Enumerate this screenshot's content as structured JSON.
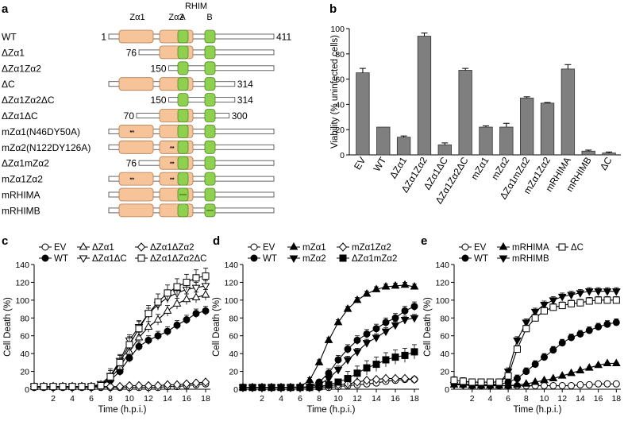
{
  "panel_a": {
    "label": "a",
    "header": {
      "za1": "Zα1",
      "za2": "Zα2",
      "rhim": "RHIM",
      "a": "A",
      "b": "B"
    },
    "constructs": [
      {
        "name": "WT",
        "start_label": "1",
        "end_label": "411",
        "start": 1,
        "end": 411,
        "domains": [
          "za1",
          "za2",
          "A",
          "B"
        ],
        "mut": []
      },
      {
        "name": "ΔZα1",
        "start_label": "76",
        "end_label": "",
        "start": 76,
        "end": 411,
        "domains": [
          "za2",
          "A",
          "B"
        ],
        "mut": []
      },
      {
        "name": "ΔZα1Zα2",
        "start_label": "150",
        "end_label": "",
        "start": 150,
        "end": 411,
        "domains": [
          "A",
          "B"
        ],
        "mut": []
      },
      {
        "name": "ΔC",
        "start_label": "",
        "end_label": "314",
        "start": 1,
        "end": 314,
        "domains": [
          "za1",
          "za2",
          "A",
          "B"
        ],
        "mut": []
      },
      {
        "name": "ΔZα1Zα2ΔC",
        "start_label": "150",
        "end_label": "314",
        "start": 150,
        "end": 314,
        "domains": [
          "A",
          "B"
        ],
        "mut": []
      },
      {
        "name": "ΔZα1ΔC",
        "start_label": "70",
        "end_label": "300",
        "start": 70,
        "end": 300,
        "domains": [
          "za2",
          "A",
          "B"
        ],
        "mut": []
      },
      {
        "name": "mZα1(N46DY50A)",
        "start_label": "",
        "end_label": "",
        "start": 1,
        "end": 411,
        "domains": [
          "za1",
          "za2",
          "A",
          "B"
        ],
        "mut": [
          "za1"
        ]
      },
      {
        "name": "mZα2(N122DY126A)",
        "start_label": "",
        "end_label": "",
        "start": 1,
        "end": 411,
        "domains": [
          "za1",
          "za2",
          "A",
          "B"
        ],
        "mut": [
          "za2"
        ]
      },
      {
        "name": "ΔZα1mZα2",
        "start_label": "76",
        "end_label": "",
        "start": 76,
        "end": 411,
        "domains": [
          "za2",
          "A",
          "B"
        ],
        "mut": [
          "za2"
        ]
      },
      {
        "name": "mZα1Zα2",
        "start_label": "",
        "end_label": "",
        "start": 1,
        "end": 411,
        "domains": [
          "za1",
          "za2",
          "A",
          "B"
        ],
        "mut": [
          "za1",
          "za2"
        ]
      },
      {
        "name": "mRHIMA",
        "start_label": "",
        "end_label": "",
        "start": 1,
        "end": 411,
        "domains": [
          "za1",
          "za2",
          "A",
          "B"
        ],
        "mut": [
          "A"
        ]
      },
      {
        "name": "mRHIMB",
        "start_label": "",
        "end_label": "",
        "start": 1,
        "end": 411,
        "domains": [
          "za1",
          "za2",
          "A",
          "B"
        ],
        "mut": [
          "B"
        ]
      }
    ],
    "mut_mark": "**",
    "colors": {
      "za": "#f7c49a",
      "rhim": "#8fd14f",
      "bar": "#ffffff"
    }
  },
  "chart_data": [
    {
      "panel": "b",
      "type": "bar",
      "ylabel": "Viability (% uninfected cells)",
      "ylim": [
        0,
        100
      ],
      "yticks": [
        "0",
        "20",
        "40",
        "60",
        "80",
        "100"
      ],
      "categories": [
        "EV",
        "WT",
        "ΔZα1",
        "ΔZα1Zα2",
        "ΔZα1ΔC",
        "ΔZα1Zα2ΔC",
        "mZα1",
        "mZα2",
        "ΔZα1mZα2",
        "mZα1Zα2",
        "mRHIMA",
        "mRHIMB",
        "ΔC"
      ],
      "values": [
        65,
        22,
        14,
        94,
        8,
        67,
        22,
        22,
        45,
        41,
        68,
        3,
        1.5
      ],
      "errors": [
        3.5,
        0,
        1,
        2.5,
        1.5,
        1.5,
        1,
        3,
        1,
        0.5,
        3.5,
        0.8,
        0.8
      ],
      "bar_color": "#7f7f7f"
    },
    {
      "panel": "c",
      "type": "line",
      "xlabel": "Time (h.p.i.)",
      "ylabel": "Cell Death (%)",
      "xlim": [
        0,
        18.5
      ],
      "ylim": [
        0,
        140
      ],
      "xticks": [
        "2",
        "4",
        "6",
        "8",
        "10",
        "12",
        "14",
        "16",
        "18"
      ],
      "yticks": [
        "0",
        "20",
        "40",
        "60",
        "80",
        "100",
        "120",
        "140"
      ],
      "x": [
        0,
        1,
        2,
        3,
        4,
        5,
        6,
        7,
        8,
        9,
        10,
        11,
        12,
        13,
        14,
        15,
        16,
        17,
        18
      ],
      "series": [
        {
          "name": "EV",
          "marker": "circle-open",
          "values": [
            2,
            2,
            2,
            2,
            2,
            2,
            2,
            2,
            2,
            2,
            2,
            2,
            2,
            2,
            3,
            3,
            4,
            5,
            6
          ],
          "err": 3
        },
        {
          "name": "WT",
          "marker": "circle-filled",
          "values": [
            3,
            3,
            3,
            3,
            3,
            3,
            3,
            5,
            10,
            20,
            35,
            48,
            55,
            60,
            65,
            72,
            78,
            85,
            88
          ],
          "err": 5
        },
        {
          "name": "ΔZα1",
          "marker": "triangle-open",
          "values": [
            3,
            3,
            3,
            3,
            3,
            3,
            3,
            5,
            12,
            25,
            42,
            58,
            70,
            78,
            88,
            96,
            101,
            103,
            106
          ],
          "err": 6
        },
        {
          "name": "ΔZα1ΔC",
          "marker": "triangle-down-open",
          "values": [
            3,
            3,
            3,
            3,
            3,
            3,
            3,
            6,
            15,
            32,
            55,
            70,
            85,
            95,
            103,
            108,
            112,
            114,
            116
          ],
          "err": 6
        },
        {
          "name": "ΔZα1ΔZα2",
          "marker": "diamond-open",
          "values": [
            3,
            3,
            3,
            3,
            3,
            3,
            3,
            3,
            3,
            3,
            4,
            4,
            4,
            4,
            5,
            5,
            6,
            7,
            8
          ],
          "err": 3
        },
        {
          "name": "ΔZα1ΔZα2ΔC",
          "marker": "square-open",
          "values": [
            3,
            3,
            3,
            3,
            3,
            3,
            3,
            4,
            14,
            30,
            50,
            68,
            85,
            98,
            108,
            115,
            120,
            125,
            127
          ],
          "err": 9
        }
      ]
    },
    {
      "panel": "d",
      "type": "line",
      "xlabel": "Time (h.p.i.)",
      "ylabel": "Cell Death (%)",
      "xlim": [
        0,
        18.5
      ],
      "ylim": [
        0,
        140
      ],
      "xticks": [
        "2",
        "4",
        "6",
        "8",
        "10",
        "12",
        "14",
        "16",
        "18"
      ],
      "yticks": [
        "0",
        "20",
        "40",
        "60",
        "80",
        "100",
        "120",
        "140"
      ],
      "x": [
        0,
        1,
        2,
        3,
        4,
        5,
        6,
        7,
        8,
        9,
        10,
        11,
        12,
        13,
        14,
        15,
        16,
        17,
        18
      ],
      "series": [
        {
          "name": "EV",
          "marker": "circle-open",
          "values": [
            2,
            2,
            2,
            2,
            2,
            2,
            2,
            2,
            2,
            2,
            3,
            4,
            5,
            6,
            7,
            9,
            10,
            11,
            11
          ],
          "err": 1
        },
        {
          "name": "WT",
          "marker": "circle-filled",
          "values": [
            2,
            2,
            2,
            2,
            2,
            2,
            2,
            3,
            8,
            18,
            33,
            45,
            55,
            62,
            68,
            75,
            80,
            88,
            93
          ],
          "err": 5
        },
        {
          "name": "mZα1",
          "marker": "triangle-filled",
          "values": [
            2,
            2,
            2,
            2,
            2,
            2,
            3,
            10,
            30,
            55,
            75,
            90,
            100,
            107,
            112,
            115,
            116,
            117,
            115
          ],
          "err": 3
        },
        {
          "name": "mZα2",
          "marker": "triangle-down-filled",
          "values": [
            2,
            2,
            2,
            2,
            2,
            2,
            2,
            3,
            5,
            12,
            22,
            33,
            42,
            52,
            58,
            65,
            72,
            78,
            80
          ],
          "err": 4
        },
        {
          "name": "mZα1Zα2",
          "marker": "diamond-open",
          "values": [
            2,
            2,
            2,
            2,
            2,
            2,
            2,
            2,
            3,
            4,
            5,
            6,
            8,
            10,
            11,
            12,
            12,
            12,
            11
          ],
          "err": 1
        },
        {
          "name": "ΔZα1mZα2",
          "marker": "square-filled",
          "values": [
            2,
            2,
            2,
            2,
            2,
            2,
            2,
            2,
            3,
            5,
            8,
            12,
            18,
            24,
            28,
            33,
            36,
            38,
            42
          ],
          "err": 8
        }
      ]
    },
    {
      "panel": "e",
      "type": "line",
      "xlabel": "Time (h.p.i.)",
      "ylabel": "Cell Death (%)",
      "xlim": [
        0,
        18.5
      ],
      "ylim": [
        0,
        140
      ],
      "xticks": [
        "2",
        "4",
        "6",
        "8",
        "10",
        "12",
        "14",
        "16",
        "18"
      ],
      "yticks": [
        "0",
        "20",
        "40",
        "60",
        "80",
        "100",
        "120",
        "140"
      ],
      "x": [
        0,
        1,
        2,
        3,
        4,
        5,
        6,
        7,
        8,
        9,
        10,
        11,
        12,
        13,
        14,
        15,
        16,
        17,
        18
      ],
      "series": [
        {
          "name": "EV",
          "marker": "circle-open",
          "values": [
            6,
            5,
            4,
            4,
            4,
            4,
            4,
            4,
            4,
            4,
            4,
            4,
            4,
            4,
            5,
            5,
            6,
            6,
            6
          ],
          "err": 2
        },
        {
          "name": "WT",
          "marker": "circle-filled",
          "values": [
            6,
            6,
            5,
            5,
            5,
            5,
            8,
            12,
            20,
            28,
            36,
            44,
            52,
            58,
            62,
            66,
            70,
            73,
            75
          ],
          "err": 4
        },
        {
          "name": "mRHIMA",
          "marker": "triangle-filled",
          "values": [
            5,
            5,
            4,
            4,
            4,
            4,
            4,
            5,
            6,
            8,
            10,
            12,
            15,
            18,
            21,
            24,
            27,
            29,
            29
          ],
          "err": 1
        },
        {
          "name": "mRHIMB",
          "marker": "triangle-down-filled",
          "values": [
            5,
            5,
            5,
            5,
            5,
            6,
            20,
            55,
            75,
            87,
            95,
            100,
            104,
            106,
            108,
            110,
            110,
            110,
            110
          ],
          "err": 4
        },
        {
          "name": "ΔC",
          "marker": "square-open",
          "values": [
            10,
            9,
            8,
            8,
            8,
            8,
            15,
            45,
            68,
            80,
            88,
            92,
            94,
            96,
            97,
            99,
            100,
            100,
            100
          ],
          "err": 4
        }
      ]
    }
  ]
}
